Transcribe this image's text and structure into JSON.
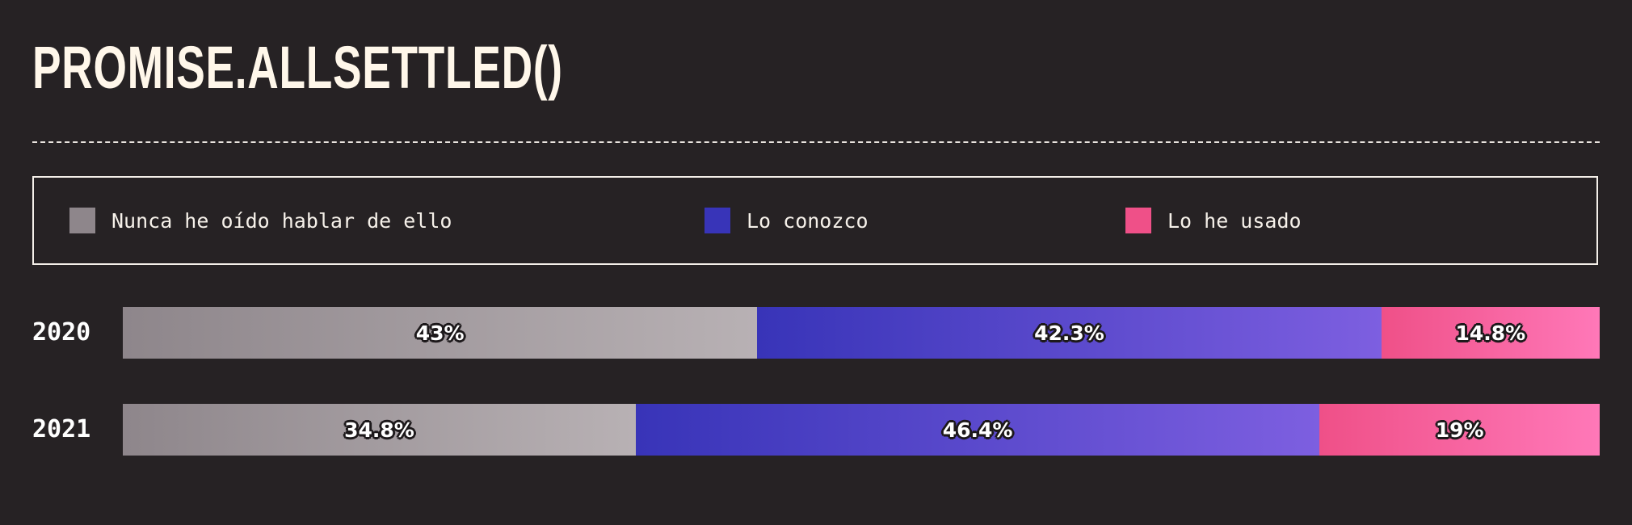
{
  "title": "PROMISE.ALLSETTLED()",
  "chart_data": {
    "type": "bar",
    "orientation": "horizontal",
    "stacked": true,
    "categories": [
      "2020",
      "2021"
    ],
    "series": [
      {
        "name": "Nunca he oído hablar de ello",
        "values": [
          43,
          34.8
        ],
        "labels": [
          "43%",
          "34.8%"
        ],
        "color_start": "#8e868b",
        "color_end": "#b8b1b4"
      },
      {
        "name": "Lo conozco",
        "values": [
          42.3,
          46.4
        ],
        "labels": [
          "42.3%",
          "46.4%"
        ],
        "color_start": "#3834b8",
        "color_end": "#7d5fe0"
      },
      {
        "name": "Lo he usado",
        "values": [
          14.8,
          19
        ],
        "labels": [
          "14.8%",
          "19%"
        ],
        "color_start": "#ef5088",
        "color_end": "#ff78b8"
      }
    ],
    "xlim": [
      0,
      100
    ],
    "legend_position": "top"
  }
}
